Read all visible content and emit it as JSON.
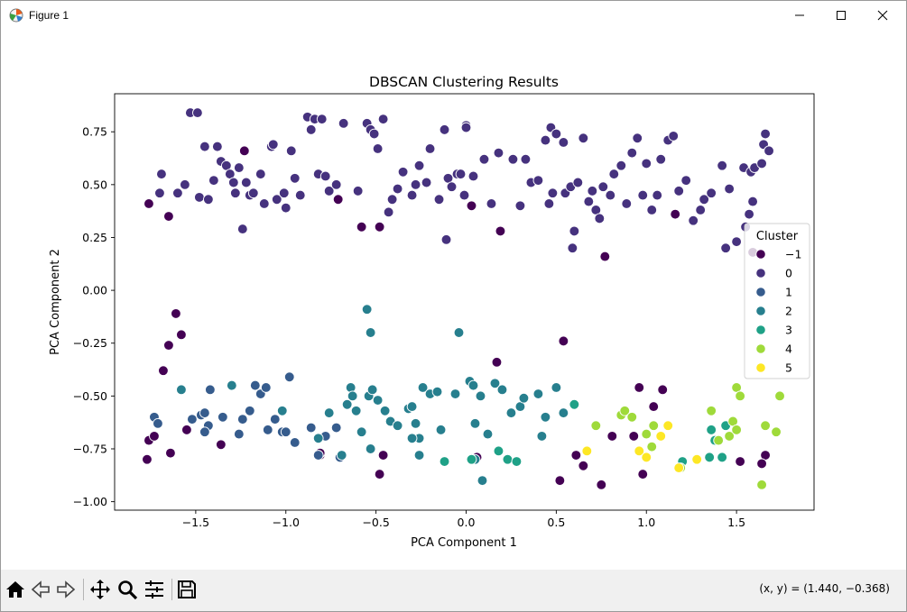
{
  "window": {
    "title": "Figure 1",
    "icon": "matplotlib-figure-icon",
    "controls": [
      "minimize-icon",
      "maximize-icon",
      "close-icon"
    ]
  },
  "toolbar": {
    "buttons": [
      "home-icon",
      "back-icon",
      "forward-icon",
      "pan-icon",
      "zoom-icon",
      "configure-subplots-icon",
      "save-icon"
    ],
    "coords": "(x, y) = (1.440, −0.368)"
  },
  "chart_data": {
    "type": "scatter",
    "title": "DBSCAN Clustering Results",
    "xlabel": "PCA Component 1",
    "ylabel": "PCA Component 2",
    "xlim": [
      -1.95,
      1.93
    ],
    "ylim": [
      -1.04,
      0.93
    ],
    "xticks": [
      -1.5,
      -1.0,
      -0.5,
      0.0,
      0.5,
      1.0,
      1.5
    ],
    "xtick_labels": [
      "−1.5",
      "−1.0",
      "−0.5",
      "0.0",
      "0.5",
      "1.0",
      "1.5"
    ],
    "yticks": [
      -1.0,
      -0.75,
      -0.5,
      -0.25,
      0.0,
      0.25,
      0.5,
      0.75
    ],
    "ytick_labels": [
      "−1.00",
      "−0.75",
      "−0.50",
      "−0.25",
      "0.00",
      "0.25",
      "0.50",
      "0.75"
    ],
    "grid": false,
    "legend": {
      "title": "Cluster",
      "placement": "center-right"
    },
    "series": [
      {
        "name": "−1",
        "color": "#440154",
        "points": [
          [
            -1.76,
            0.41
          ],
          [
            -1.65,
            0.35
          ],
          [
            -1.23,
            0.66
          ],
          [
            -0.71,
            0.43
          ],
          [
            -0.58,
            0.3
          ],
          [
            -0.48,
            0.3
          ],
          [
            0.03,
            0.4
          ],
          [
            0.19,
            0.28
          ],
          [
            0.77,
            0.16
          ],
          [
            1.16,
            0.36
          ],
          [
            1.59,
            0.18
          ],
          [
            -1.61,
            -0.11
          ],
          [
            -1.58,
            -0.21
          ],
          [
            -1.65,
            -0.26
          ],
          [
            -1.68,
            -0.38
          ],
          [
            0.54,
            -0.24
          ],
          [
            0.17,
            -0.34
          ],
          [
            -1.77,
            -0.8
          ],
          [
            -1.76,
            -0.71
          ],
          [
            -1.73,
            -0.69
          ],
          [
            -1.64,
            -0.77
          ],
          [
            -1.55,
            -0.66
          ],
          [
            -1.36,
            -0.73
          ],
          [
            -0.81,
            -0.78
          ],
          [
            -0.81,
            -0.77
          ],
          [
            -0.46,
            -0.78
          ],
          [
            -0.48,
            -0.87
          ],
          [
            0.06,
            -0.79
          ],
          [
            0.52,
            -0.9
          ],
          [
            0.61,
            -0.78
          ],
          [
            0.65,
            -0.83
          ],
          [
            0.75,
            -0.92
          ],
          [
            0.81,
            -0.69
          ],
          [
            0.93,
            -0.69
          ],
          [
            0.96,
            -0.46
          ],
          [
            0.98,
            -0.87
          ],
          [
            1.04,
            -0.55
          ],
          [
            1.09,
            -0.47
          ],
          [
            1.66,
            -0.78
          ],
          [
            1.64,
            -0.82
          ],
          [
            1.52,
            -0.81
          ]
        ]
      },
      {
        "name": "0",
        "color": "#46327e",
        "points": [
          [
            -1.69,
            0.55
          ],
          [
            -1.7,
            0.46
          ],
          [
            -1.6,
            0.46
          ],
          [
            -1.56,
            0.5
          ],
          [
            -1.53,
            0.84
          ],
          [
            -1.49,
            0.84
          ],
          [
            -1.48,
            0.44
          ],
          [
            -1.45,
            0.68
          ],
          [
            -1.43,
            0.43
          ],
          [
            -1.4,
            0.52
          ],
          [
            -1.38,
            0.68
          ],
          [
            -1.36,
            0.61
          ],
          [
            -1.33,
            0.59
          ],
          [
            -1.31,
            0.55
          ],
          [
            -1.29,
            0.51
          ],
          [
            -1.28,
            0.46
          ],
          [
            -1.26,
            0.58
          ],
          [
            -1.24,
            0.29
          ],
          [
            -1.22,
            0.51
          ],
          [
            -1.2,
            0.45
          ],
          [
            -1.18,
            0.46
          ],
          [
            -1.14,
            0.55
          ],
          [
            -1.12,
            0.41
          ],
          [
            -1.08,
            0.68
          ],
          [
            -1.07,
            0.69
          ],
          [
            -1.05,
            0.43
          ],
          [
            -1.01,
            0.46
          ],
          [
            -1.0,
            0.39
          ],
          [
            -0.97,
            0.66
          ],
          [
            -0.95,
            0.53
          ],
          [
            -0.92,
            0.45
          ],
          [
            -0.88,
            0.82
          ],
          [
            -0.86,
            0.76
          ],
          [
            -0.84,
            0.81
          ],
          [
            -0.82,
            0.55
          ],
          [
            -0.8,
            0.81
          ],
          [
            -0.78,
            0.54
          ],
          [
            -0.76,
            0.47
          ],
          [
            -0.72,
            0.5
          ],
          [
            -0.68,
            0.79
          ],
          [
            -0.6,
            0.47
          ],
          [
            -0.55,
            0.79
          ],
          [
            -0.53,
            0.76
          ],
          [
            -0.51,
            0.74
          ],
          [
            -0.49,
            0.67
          ],
          [
            -0.46,
            0.81
          ],
          [
            -0.43,
            0.37
          ],
          [
            -0.41,
            0.43
          ],
          [
            -0.38,
            0.48
          ],
          [
            -0.35,
            0.56
          ],
          [
            -0.3,
            0.45
          ],
          [
            -0.28,
            0.5
          ],
          [
            -0.26,
            0.59
          ],
          [
            -0.22,
            0.51
          ],
          [
            -0.2,
            0.67
          ],
          [
            -0.15,
            0.43
          ],
          [
            -0.12,
            0.76
          ],
          [
            -0.1,
            0.53
          ],
          [
            -0.08,
            0.49
          ],
          [
            -0.05,
            0.55
          ],
          [
            -0.03,
            0.55
          ],
          [
            -0.01,
            0.45
          ],
          [
            0.0,
            0.78
          ],
          [
            0.0,
            0.77
          ],
          [
            0.04,
            0.54
          ],
          [
            0.1,
            0.62
          ],
          [
            0.14,
            0.41
          ],
          [
            0.18,
            0.65
          ],
          [
            0.26,
            0.62
          ],
          [
            0.3,
            0.4
          ],
          [
            0.33,
            0.62
          ],
          [
            0.36,
            0.51
          ],
          [
            0.4,
            0.52
          ],
          [
            0.44,
            0.71
          ],
          [
            0.46,
            0.41
          ],
          [
            0.47,
            0.77
          ],
          [
            0.48,
            0.46
          ],
          [
            0.5,
            0.74
          ],
          [
            0.54,
            0.7
          ],
          [
            0.55,
            0.46
          ],
          [
            0.58,
            0.49
          ],
          [
            0.62,
            0.51
          ],
          [
            0.65,
            0.72
          ],
          [
            0.68,
            0.42
          ],
          [
            0.7,
            0.47
          ],
          [
            0.72,
            0.38
          ],
          [
            0.74,
            0.34
          ],
          [
            0.76,
            0.49
          ],
          [
            0.8,
            0.45
          ],
          [
            0.82,
            0.55
          ],
          [
            0.86,
            0.59
          ],
          [
            0.89,
            0.41
          ],
          [
            0.92,
            0.65
          ],
          [
            0.95,
            0.72
          ],
          [
            0.98,
            0.45
          ],
          [
            1.0,
            0.6
          ],
          [
            1.03,
            0.38
          ],
          [
            1.06,
            0.45
          ],
          [
            1.08,
            0.62
          ],
          [
            1.12,
            0.71
          ],
          [
            1.15,
            0.73
          ],
          [
            1.18,
            0.47
          ],
          [
            1.22,
            0.52
          ],
          [
            1.26,
            0.33
          ],
          [
            1.3,
            0.38
          ],
          [
            1.32,
            0.43
          ],
          [
            1.36,
            0.46
          ],
          [
            1.42,
            0.59
          ],
          [
            1.46,
            0.48
          ],
          [
            1.54,
            0.58
          ],
          [
            1.58,
            0.56
          ],
          [
            1.6,
            0.58
          ],
          [
            1.64,
            0.6
          ],
          [
            1.65,
            0.69
          ],
          [
            1.66,
            0.74
          ],
          [
            1.68,
            0.66
          ],
          [
            1.44,
            0.2
          ],
          [
            1.5,
            0.23
          ],
          [
            1.55,
            0.3
          ],
          [
            1.57,
            0.36
          ],
          [
            1.59,
            0.42
          ],
          [
            0.59,
            0.2
          ],
          [
            -0.11,
            0.24
          ],
          [
            0.6,
            0.28
          ]
        ]
      },
      {
        "name": "1",
        "color": "#365c8d",
        "points": [
          [
            -1.73,
            -0.6
          ],
          [
            -1.71,
            -0.63
          ],
          [
            -1.52,
            -0.61
          ],
          [
            -1.47,
            -0.59
          ],
          [
            -1.45,
            -0.58
          ],
          [
            -1.42,
            -0.47
          ],
          [
            -1.35,
            -0.6
          ],
          [
            -1.24,
            -0.61
          ],
          [
            -1.2,
            -0.57
          ],
          [
            -1.17,
            -0.45
          ],
          [
            -1.14,
            -0.49
          ],
          [
            -1.1,
            -0.66
          ],
          [
            -1.06,
            -0.61
          ],
          [
            -1.02,
            -0.67
          ],
          [
            -1.0,
            -0.67
          ],
          [
            -0.95,
            -0.72
          ],
          [
            -0.86,
            -0.65
          ],
          [
            -0.82,
            -0.78
          ],
          [
            -0.78,
            -0.69
          ],
          [
            -0.72,
            -0.65
          ],
          [
            -0.7,
            -0.79
          ],
          [
            -0.98,
            -0.41
          ],
          [
            -1.11,
            -0.46
          ],
          [
            -1.43,
            -0.64
          ],
          [
            -1.26,
            -0.68
          ],
          [
            -1.45,
            -0.67
          ]
        ]
      },
      {
        "name": "2",
        "color": "#277f8e",
        "points": [
          [
            -0.55,
            -0.09
          ],
          [
            -0.53,
            -0.2
          ],
          [
            -1.58,
            -0.47
          ],
          [
            -1.3,
            -0.45
          ],
          [
            -1.02,
            -0.57
          ],
          [
            -0.82,
            -0.7
          ],
          [
            -0.76,
            -0.58
          ],
          [
            -0.69,
            -0.78
          ],
          [
            -0.66,
            -0.54
          ],
          [
            -0.64,
            -0.46
          ],
          [
            -0.63,
            -0.5
          ],
          [
            -0.61,
            -0.57
          ],
          [
            -0.58,
            -0.67
          ],
          [
            -0.54,
            -0.5
          ],
          [
            -0.52,
            -0.47
          ],
          [
            -0.49,
            -0.52
          ],
          [
            -0.45,
            -0.57
          ],
          [
            -0.42,
            -0.62
          ],
          [
            -0.38,
            -0.64
          ],
          [
            -0.32,
            -0.56
          ],
          [
            -0.3,
            -0.55
          ],
          [
            -0.28,
            -0.63
          ],
          [
            -0.26,
            -0.7
          ],
          [
            -0.24,
            -0.46
          ],
          [
            -0.2,
            -0.49
          ],
          [
            -0.16,
            -0.48
          ],
          [
            -0.14,
            -0.66
          ],
          [
            -0.06,
            -0.49
          ],
          [
            -0.04,
            -0.2
          ],
          [
            0.02,
            -0.43
          ],
          [
            0.04,
            -0.45
          ],
          [
            0.05,
            -0.63
          ],
          [
            0.08,
            -0.5
          ],
          [
            0.12,
            -0.68
          ],
          [
            0.16,
            -0.44
          ],
          [
            0.2,
            -0.47
          ],
          [
            0.25,
            -0.58
          ],
          [
            0.3,
            -0.55
          ],
          [
            0.32,
            -0.51
          ],
          [
            0.4,
            -0.49
          ],
          [
            0.42,
            -0.69
          ],
          [
            0.44,
            -0.6
          ],
          [
            0.5,
            -0.46
          ],
          [
            0.54,
            -0.58
          ],
          [
            -0.53,
            -0.75
          ],
          [
            0.05,
            -0.8
          ],
          [
            -0.26,
            -0.78
          ],
          [
            0.09,
            -0.9
          ],
          [
            -0.3,
            -0.7
          ]
        ]
      },
      {
        "name": "3",
        "color": "#1fa187",
        "points": [
          [
            -0.12,
            -0.81
          ],
          [
            0.03,
            -0.8
          ],
          [
            0.18,
            -0.76
          ],
          [
            0.23,
            -0.8
          ],
          [
            0.28,
            -0.81
          ],
          [
            0.6,
            -0.54
          ],
          [
            1.2,
            -0.81
          ],
          [
            1.35,
            -0.79
          ],
          [
            1.36,
            -0.66
          ],
          [
            1.38,
            -0.71
          ],
          [
            1.42,
            -0.79
          ],
          [
            1.44,
            -0.64
          ]
        ]
      },
      {
        "name": "4",
        "color": "#9fda3a",
        "points": [
          [
            0.72,
            -0.64
          ],
          [
            0.86,
            -0.59
          ],
          [
            0.88,
            -0.57
          ],
          [
            0.92,
            -0.6
          ],
          [
            1.0,
            -0.68
          ],
          [
            1.04,
            -0.64
          ],
          [
            1.03,
            -0.74
          ],
          [
            1.19,
            -0.84
          ],
          [
            1.36,
            -0.57
          ],
          [
            1.4,
            -0.71
          ],
          [
            1.46,
            -0.69
          ],
          [
            1.48,
            -0.62
          ],
          [
            1.5,
            -0.46
          ],
          [
            1.52,
            -0.5
          ],
          [
            1.5,
            -0.66
          ],
          [
            1.64,
            -0.92
          ],
          [
            1.66,
            -0.64
          ],
          [
            1.72,
            -0.67
          ],
          [
            1.74,
            -0.5
          ]
        ]
      },
      {
        "name": "5",
        "color": "#fde725",
        "points": [
          [
            0.67,
            -0.76
          ],
          [
            0.96,
            -0.76
          ],
          [
            1.0,
            -0.79
          ],
          [
            1.08,
            -0.69
          ],
          [
            1.12,
            -0.64
          ],
          [
            1.18,
            -0.84
          ],
          [
            1.28,
            -0.8
          ]
        ]
      }
    ]
  }
}
